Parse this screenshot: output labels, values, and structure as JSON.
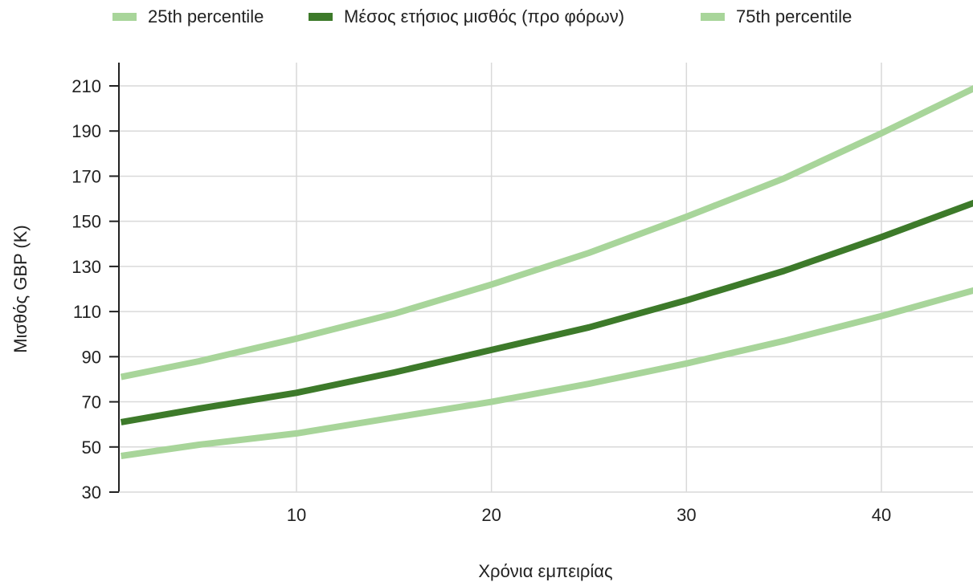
{
  "chart_data": {
    "type": "line",
    "title": "",
    "xlabel": "Χρόνια εμπειρίας",
    "ylabel": "Μισθός GBP (K)",
    "xlim": [
      1,
      45
    ],
    "ylim": [
      30,
      220
    ],
    "xticks": [
      10,
      20,
      30,
      40
    ],
    "yticks": [
      30,
      50,
      70,
      90,
      110,
      130,
      150,
      170,
      190,
      210
    ],
    "grid": true,
    "legend_position": "top",
    "x": [
      1,
      5,
      10,
      15,
      20,
      25,
      30,
      35,
      40,
      45
    ],
    "series": [
      {
        "name": "25th percentile",
        "color": "#a8d59a",
        "values": [
          46,
          51,
          56,
          63,
          70,
          78,
          87,
          97,
          108,
          120
        ]
      },
      {
        "name": "Μέσος ετήσιος μισθός (προ φόρων)",
        "color": "#3d7a2a",
        "values": [
          61,
          67,
          74,
          83,
          93,
          103,
          115,
          128,
          143,
          159
        ]
      },
      {
        "name": "75th percentile",
        "color": "#a8d59a",
        "values": [
          81,
          88,
          98,
          109,
          122,
          136,
          152,
          169,
          189,
          210
        ]
      }
    ]
  }
}
